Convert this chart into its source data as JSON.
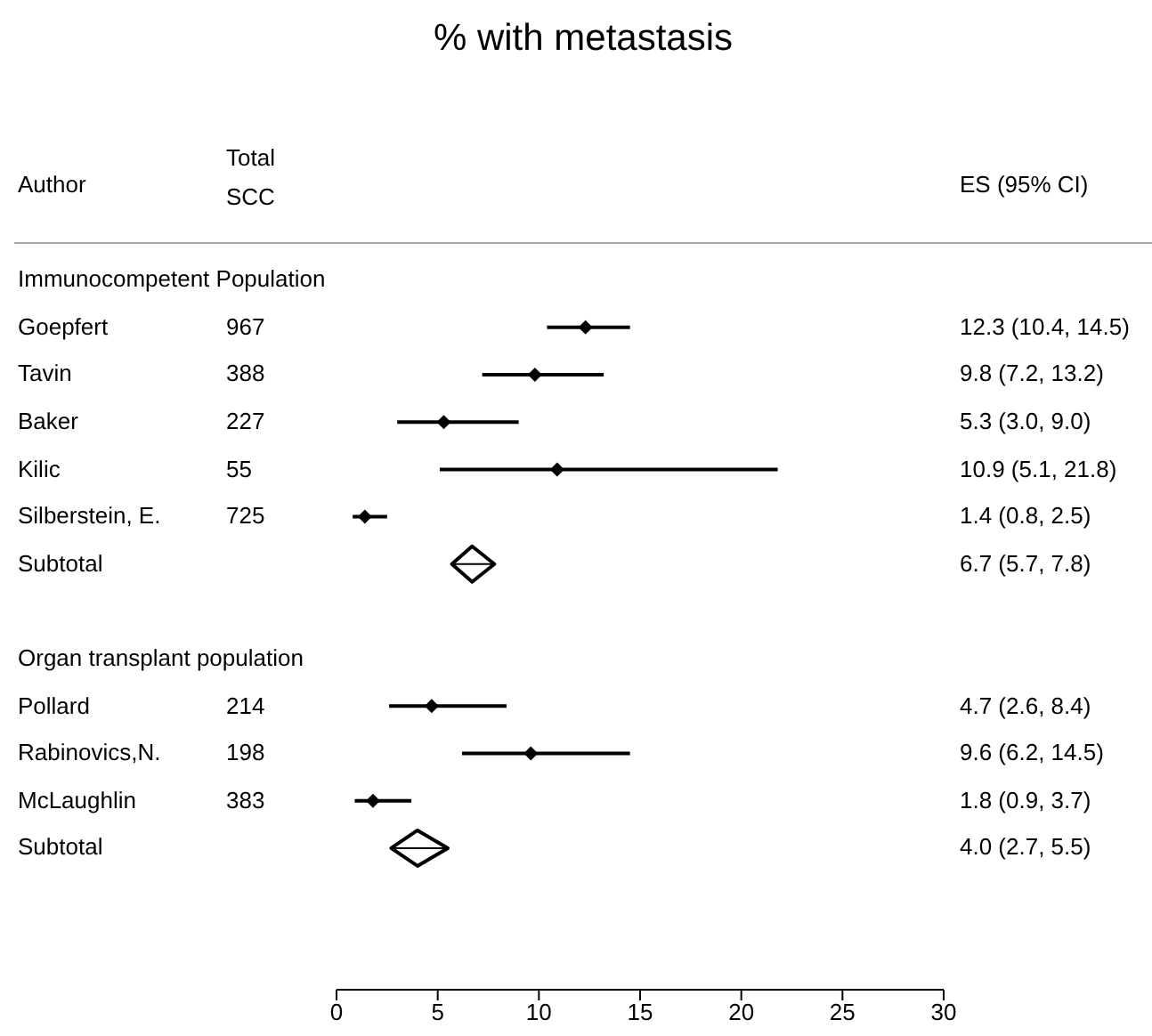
{
  "chart_data": {
    "type": "scatter",
    "title": "% with metastasis",
    "orientation": "horizontal",
    "categories": [
      "Immunocompetent Population",
      "Goepfert",
      "Tavin",
      "Baker",
      "Kilic",
      "Silberstein, E.",
      "Subtotal",
      null,
      "Organ transplant population",
      "Pollard",
      "Rabinovics,N.",
      "McLaughlin",
      "Subtotal"
    ],
    "series": [
      {
        "color": "#000000",
        "marker": "diamond",
        "values": [
          null,
          12.3,
          9.8,
          5.3,
          10.9,
          1.4,
          null,
          null,
          null,
          4.7,
          9.6,
          1.8,
          null
        ],
        "errors": [
          null,
          [
            10.4,
            14.5
          ],
          [
            7.2,
            13.2
          ],
          [
            3.0,
            9.0
          ],
          [
            5.1,
            21.8
          ],
          [
            0.8,
            2.5
          ],
          null,
          null,
          null,
          [
            2.6,
            8.4
          ],
          [
            6.2,
            14.5
          ],
          [
            0.9,
            3.7
          ],
          null
        ]
      },
      {
        "color": "#000000",
        "marker": "diamond",
        "values": [
          null,
          null,
          null,
          null,
          null,
          null,
          6.7,
          null,
          null,
          null,
          null,
          null,
          4.0
        ],
        "errors": [
          null,
          null,
          null,
          null,
          null,
          null,
          [
            5.7,
            7.8
          ],
          null,
          null,
          null,
          null,
          null,
          [
            2.7,
            5.5
          ]
        ]
      }
    ],
    "xlim": [
      0,
      30
    ],
    "xticks": [
      0,
      5,
      10,
      15,
      20,
      25,
      30
    ],
    "annotations": [
      "Author",
      "Total SCC",
      "ES (95% CI)",
      "967",
      "388",
      "227",
      "55",
      "725",
      "214",
      "198",
      "383",
      "12.3 (10.4, 14.5)",
      "9.8 (7.2, 13.2)",
      "5.3 (3.0, 9.0)",
      "10.9 (5.1, 21.8)",
      "1.4 (0.8, 2.5)",
      "6.7 (5.7, 7.8)",
      "4.7 (2.6, 8.4)",
      "9.6 (6.2, 14.5)",
      "1.8 (0.9, 3.7)",
      "4.0 (2.7, 5.5)"
    ]
  }
}
